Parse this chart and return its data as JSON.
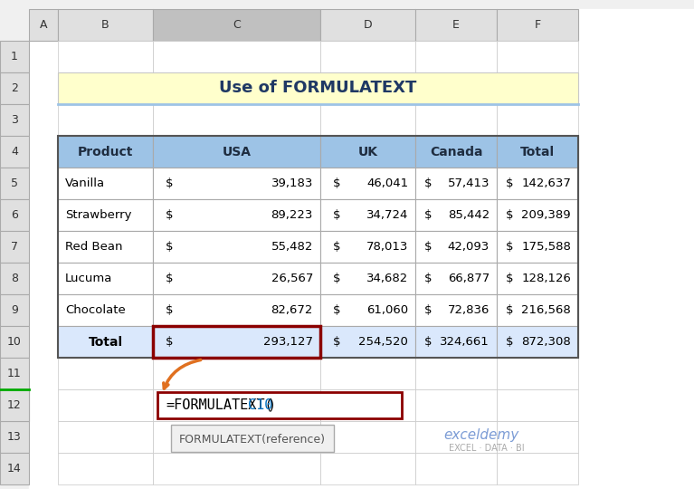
{
  "title": "Use of FORMULATEXT",
  "title_bg": "#FFFFCC",
  "col_headers": [
    "Product",
    "USA",
    "UK",
    "Canada",
    "Total"
  ],
  "header_bg": "#9DC3E6",
  "rows": [
    [
      "Vanilla",
      "$",
      "39,183",
      "$",
      "46,041",
      "$",
      "57,413",
      "$",
      "142,637"
    ],
    [
      "Strawberry",
      "$",
      "89,223",
      "$",
      "34,724",
      "$",
      "85,442",
      "$",
      "209,389"
    ],
    [
      "Red Bean",
      "$",
      "55,482",
      "$",
      "78,013",
      "$",
      "42,093",
      "$",
      "175,588"
    ],
    [
      "Lucuma",
      "$",
      "26,567",
      "$",
      "34,682",
      "$",
      "66,877",
      "$",
      "128,126"
    ],
    [
      "Chocolate",
      "$",
      "82,672",
      "$",
      "61,060",
      "$",
      "72,836",
      "$",
      "216,568"
    ]
  ],
  "total_row": [
    "Total",
    "$",
    "293,127",
    "$",
    "254,520",
    "$",
    "324,661",
    "$",
    "872,308"
  ],
  "row_bg_even": "#FFFFFF",
  "row_bg_odd": "#FFFFFF",
  "total_row_bg": "#DAE8FC",
  "grid_color": "#AAAAAA",
  "formula_text": "=FORMULATEXT(",
  "formula_ref": "C10",
  "formula_end": ")",
  "tooltip_text": "FORMULATEXT(reference)",
  "excel_col_headers": [
    "A",
    "B",
    "C",
    "D",
    "E",
    "F"
  ],
  "excel_row_headers": [
    "1",
    "2",
    "3",
    "4",
    "5",
    "6",
    "7",
    "8",
    "9",
    "10",
    "11",
    "12",
    "13",
    "14"
  ],
  "highlight_col": "C",
  "highlight_col_header_bg": "#C0C0C0",
  "outer_border": "#888888",
  "red_border": "#8B0000",
  "orange_arrow_color": "#E07020",
  "tooltip_bg": "#F0F0F0",
  "tooltip_border": "#AAAAAA"
}
